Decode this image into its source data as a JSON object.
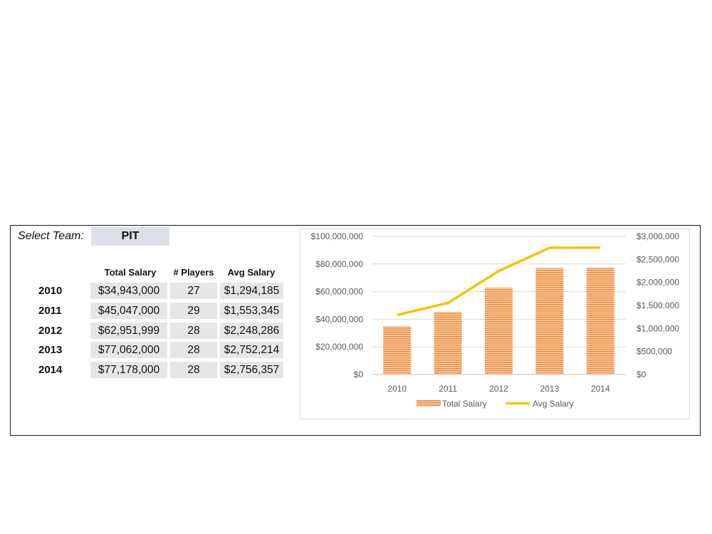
{
  "selector": {
    "label": "Select Team:",
    "value": "PIT"
  },
  "table": {
    "headers": [
      "Total Salary",
      "# Players",
      "Avg Salary"
    ],
    "rows": [
      {
        "year": "2010",
        "total": "$34,943,000",
        "players": "27",
        "avg": "$1,294,185"
      },
      {
        "year": "2011",
        "total": "$45,047,000",
        "players": "29",
        "avg": "$1,553,345"
      },
      {
        "year": "2012",
        "total": "$62,951,999",
        "players": "28",
        "avg": "$2,248,286"
      },
      {
        "year": "2013",
        "total": "$77,062,000",
        "players": "28",
        "avg": "$2,752,214"
      },
      {
        "year": "2014",
        "total": "$77,178,000",
        "players": "28",
        "avg": "$2,756,357"
      }
    ]
  },
  "chart_data": {
    "type": "bar",
    "categories": [
      "2010",
      "2011",
      "2012",
      "2013",
      "2014"
    ],
    "series": [
      {
        "name": "Total Salary",
        "type": "bar",
        "axis": "left",
        "color": "#f4a460",
        "values": [
          34943000,
          45047000,
          62951999,
          77062000,
          77178000
        ]
      },
      {
        "name": "Avg Salary",
        "type": "line",
        "axis": "right",
        "color": "#f5c400",
        "values": [
          1294185,
          1553345,
          2248286,
          2752214,
          2756357
        ]
      }
    ],
    "y_left": {
      "min": 0,
      "max": 100000000,
      "ticks": [
        "$0",
        "$20,000,000",
        "$40,000,000",
        "$60,000,000",
        "$80,000,000",
        "$100,000,000"
      ]
    },
    "y_right": {
      "min": 0,
      "max": 3000000,
      "ticks": [
        "$0",
        "$500,000",
        "$1,000,000",
        "$1,500,000",
        "$2,000,000",
        "$2,500,000",
        "$3,000,000"
      ]
    },
    "grid": true,
    "legend": "bottom"
  }
}
